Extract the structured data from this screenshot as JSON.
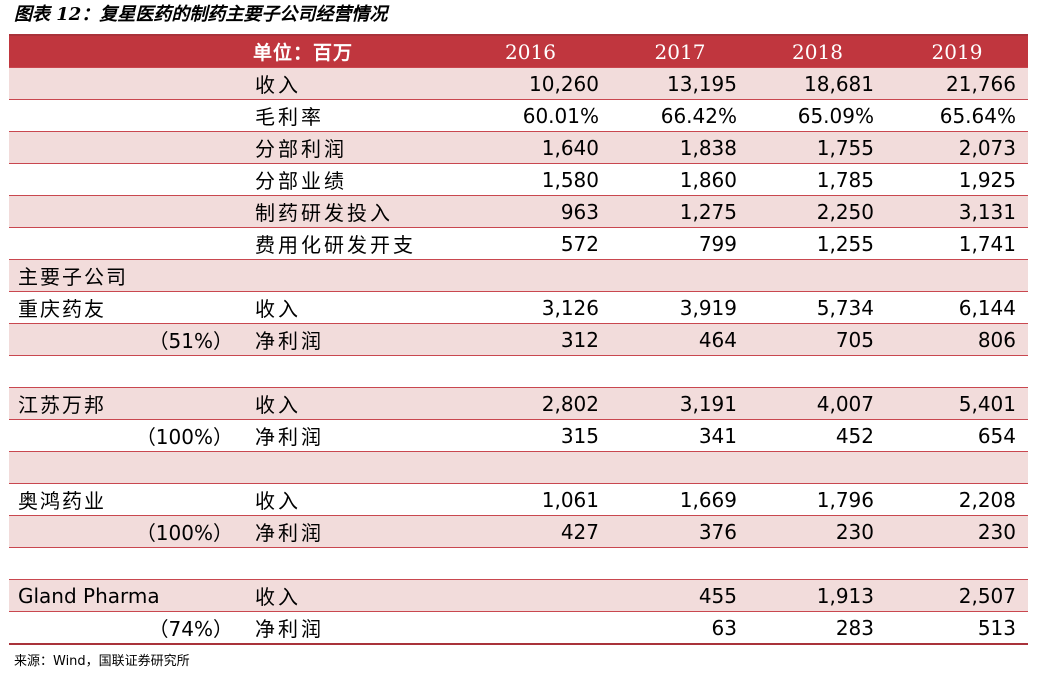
{
  "title": "图表 12：复星医药的制药主要子公司经营情况",
  "header": {
    "unit_label": "单位：百万",
    "years": [
      "2016",
      "2017",
      "2018",
      "2019"
    ]
  },
  "summary": [
    {
      "label": "收入",
      "values": [
        "10,260",
        "13,195",
        "18,681",
        "21,766"
      ]
    },
    {
      "label": "毛利率",
      "values": [
        "60.01%",
        "66.42%",
        "65.09%",
        "65.64%"
      ]
    },
    {
      "label": "分部利润",
      "values": [
        "1,640",
        "1,838",
        "1,755",
        "2,073"
      ]
    },
    {
      "label": "分部业绩",
      "values": [
        "1,580",
        "1,860",
        "1,785",
        "1,925"
      ]
    },
    {
      "label": "制药研发投入",
      "values": [
        "963",
        "1,275",
        "2,250",
        "3,131"
      ]
    },
    {
      "label": "费用化研发开支",
      "values": [
        "572",
        "799",
        "1,255",
        "1,741"
      ]
    }
  ],
  "section_label": "主要子公司",
  "subsidiaries": [
    {
      "name": "重庆药友",
      "share": "（51%）",
      "revenue_label": "收入",
      "revenue": [
        "3,126",
        "3,919",
        "5,734",
        "6,144"
      ],
      "profit_label": "净利润",
      "profit": [
        "312",
        "464",
        "705",
        "806"
      ]
    },
    {
      "name": "江苏万邦",
      "share": "（100%）",
      "revenue_label": "收入",
      "revenue": [
        "2,802",
        "3,191",
        "4,007",
        "5,401"
      ],
      "profit_label": "净利润",
      "profit": [
        "315",
        "341",
        "452",
        "654"
      ]
    },
    {
      "name": "奥鸿药业",
      "share": "（100%）",
      "revenue_label": "收入",
      "revenue": [
        "1,061",
        "1,669",
        "1,796",
        "2,208"
      ],
      "profit_label": "净利润",
      "profit": [
        "427",
        "376",
        "230",
        "230"
      ]
    },
    {
      "name": "Gland Pharma",
      "share": "（74%）",
      "revenue_label": "收入",
      "revenue": [
        "",
        "455",
        "1,913",
        "2,507"
      ],
      "profit_label": "净利润",
      "profit": [
        "",
        "63",
        "283",
        "513"
      ]
    }
  ],
  "source": "来源：Wind，国联证券研究所",
  "colors": {
    "header_bg": "#c0363e",
    "band": "#f2dcdb",
    "rule": "#c9474f"
  }
}
